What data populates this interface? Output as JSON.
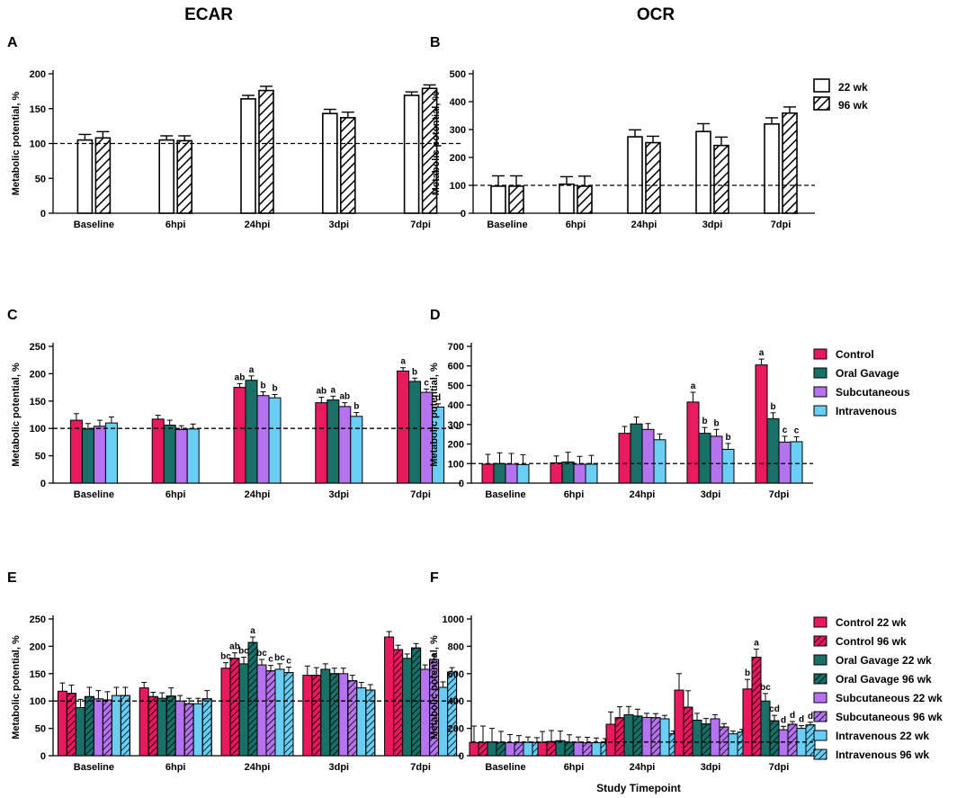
{
  "headers": {
    "left": "ECAR",
    "right": "OCR"
  },
  "x_axis_title": "Study Timepoint",
  "colors": {
    "wk22": "#ffffff",
    "wk96": "#ffffff",
    "Control": "#e8195c",
    "Oral Gavage": "#187069",
    "Subcutaneous": "#b673ef",
    "Intravenous": "#69cdf4"
  },
  "chart_data": [
    {
      "id": "A",
      "type": "bar",
      "panel_label": "A",
      "ylabel": "Metabolic potential, %",
      "ylim": [
        0,
        200
      ],
      "yticks": [
        0,
        50,
        100,
        150,
        200
      ],
      "reference_line": 100,
      "categories": [
        "Baseline",
        "6hpi",
        "24hpi",
        "3dpi",
        "7dpi"
      ],
      "series": [
        {
          "name": "22 wk",
          "color": "#ffffff",
          "hatch": false,
          "values": [
            105,
            105,
            164,
            143,
            169
          ],
          "errors": [
            8,
            6,
            5,
            6,
            5
          ]
        },
        {
          "name": "96 wk",
          "color": "#ffffff",
          "hatch": true,
          "values": [
            108,
            104,
            176,
            137,
            179
          ],
          "errors": [
            9,
            7,
            6,
            8,
            5
          ]
        }
      ],
      "legend": false,
      "annotations": []
    },
    {
      "id": "B",
      "type": "bar",
      "panel_label": "B",
      "ylabel": "Metabolic potential, %",
      "ylim": [
        0,
        500
      ],
      "yticks": [
        0,
        100,
        200,
        300,
        400,
        500
      ],
      "reference_line": 100,
      "categories": [
        "Baseline",
        "6hpi",
        "24hpi",
        "3dpi",
        "7dpi"
      ],
      "series": [
        {
          "name": "22 wk",
          "color": "#ffffff",
          "hatch": false,
          "values": [
            97,
            104,
            274,
            293,
            320
          ],
          "errors": [
            37,
            27,
            25,
            28,
            22
          ]
        },
        {
          "name": "96 wk",
          "color": "#ffffff",
          "hatch": true,
          "values": [
            97,
            97,
            253,
            243,
            359
          ],
          "errors": [
            37,
            36,
            23,
            30,
            22
          ]
        }
      ],
      "legend": true,
      "annotations": []
    },
    {
      "id": "C",
      "type": "bar",
      "panel_label": "C",
      "ylabel": "Metabolic potential, %",
      "ylim": [
        0,
        250
      ],
      "yticks": [
        0,
        50,
        100,
        150,
        200,
        250
      ],
      "reference_line": 100,
      "categories": [
        "Baseline",
        "6hpi",
        "24hpi",
        "3dpi",
        "7dpi"
      ],
      "series": [
        {
          "name": "Control",
          "color": "#e8195c",
          "hatch": false,
          "values": [
            115,
            117,
            175,
            147,
            205
          ],
          "errors": [
            12,
            7,
            7,
            10,
            6
          ]
        },
        {
          "name": "Oral Gavage",
          "color": "#187069",
          "hatch": false,
          "values": [
            99,
            106,
            188,
            152,
            186
          ],
          "errors": [
            10,
            9,
            8,
            7,
            6
          ]
        },
        {
          "name": "Subcutaneous",
          "color": "#b673ef",
          "hatch": false,
          "values": [
            104,
            98,
            160,
            140,
            166
          ],
          "errors": [
            11,
            7,
            7,
            7,
            6
          ]
        },
        {
          "name": "Intravenous",
          "color": "#69cdf4",
          "hatch": false,
          "values": [
            110,
            99,
            156,
            122,
            139
          ],
          "errors": [
            11,
            9,
            6,
            7,
            6
          ]
        }
      ],
      "legend": true,
      "annotations": [
        {
          "category": "24hpi",
          "series": "Control",
          "text": "ab"
        },
        {
          "category": "24hpi",
          "series": "Oral Gavage",
          "text": "a"
        },
        {
          "category": "24hpi",
          "series": "Subcutaneous",
          "text": "b"
        },
        {
          "category": "24hpi",
          "series": "Intravenous",
          "text": "b"
        },
        {
          "category": "3dpi",
          "series": "Control",
          "text": "ab"
        },
        {
          "category": "3dpi",
          "series": "Oral Gavage",
          "text": "a"
        },
        {
          "category": "3dpi",
          "series": "Subcutaneous",
          "text": "ab"
        },
        {
          "category": "3dpi",
          "series": "Intravenous",
          "text": "b"
        },
        {
          "category": "7dpi",
          "series": "Control",
          "text": "a"
        },
        {
          "category": "7dpi",
          "series": "Oral Gavage",
          "text": "b"
        },
        {
          "category": "7dpi",
          "series": "Subcutaneous",
          "text": "c"
        },
        {
          "category": "7dpi",
          "series": "Intravenous",
          "text": "d"
        }
      ]
    },
    {
      "id": "D",
      "type": "bar",
      "panel_label": "D",
      "ylabel": "Metabolic potential, %",
      "ylim": [
        0,
        700
      ],
      "yticks": [
        0,
        100,
        200,
        300,
        400,
        500,
        600,
        700
      ],
      "reference_line": 100,
      "categories": [
        "Baseline",
        "6hpi",
        "24hpi",
        "3dpi",
        "7dpi"
      ],
      "series": [
        {
          "name": "Control",
          "color": "#e8195c",
          "hatch": false,
          "values": [
            97,
            104,
            255,
            415,
            605
          ],
          "errors": [
            50,
            35,
            35,
            50,
            30
          ]
        },
        {
          "name": "Oral Gavage",
          "color": "#187069",
          "hatch": false,
          "values": [
            100,
            108,
            303,
            255,
            330
          ],
          "errors": [
            55,
            50,
            35,
            30,
            30
          ]
        },
        {
          "name": "Subcutaneous",
          "color": "#b673ef",
          "hatch": false,
          "values": [
            97,
            97,
            275,
            240,
            210
          ],
          "errors": [
            55,
            40,
            30,
            35,
            30
          ]
        },
        {
          "name": "Intravenous",
          "color": "#69cdf4",
          "hatch": false,
          "values": [
            95,
            97,
            222,
            173,
            212
          ],
          "errors": [
            50,
            45,
            30,
            30,
            25
          ]
        }
      ],
      "legend": false,
      "annotations": [
        {
          "category": "3dpi",
          "series": "Control",
          "text": "a"
        },
        {
          "category": "3dpi",
          "series": "Oral Gavage",
          "text": "b"
        },
        {
          "category": "3dpi",
          "series": "Subcutaneous",
          "text": "b"
        },
        {
          "category": "3dpi",
          "series": "Intravenous",
          "text": "b"
        },
        {
          "category": "7dpi",
          "series": "Control",
          "text": "a"
        },
        {
          "category": "7dpi",
          "series": "Oral Gavage",
          "text": "b"
        },
        {
          "category": "7dpi",
          "series": "Subcutaneous",
          "text": "c"
        },
        {
          "category": "7dpi",
          "series": "Intravenous",
          "text": "c"
        }
      ]
    },
    {
      "id": "E",
      "type": "bar",
      "panel_label": "E",
      "ylabel": "Metabolic potential, %",
      "ylim": [
        0,
        250
      ],
      "yticks": [
        0,
        50,
        100,
        150,
        200,
        250
      ],
      "reference_line": 100,
      "categories": [
        "Baseline",
        "6hpi",
        "24hpi",
        "3dpi",
        "7dpi"
      ],
      "series": [
        {
          "name": "Control 22 wk",
          "color": "#e8195c",
          "hatch": false,
          "values": [
            118,
            124,
            160,
            147,
            217
          ],
          "errors": [
            15,
            10,
            10,
            17,
            10
          ]
        },
        {
          "name": "Control 96 wk",
          "color": "#e8195c",
          "hatch": true,
          "values": [
            114,
            108,
            178,
            147,
            194
          ],
          "errors": [
            15,
            8,
            10,
            14,
            8
          ]
        },
        {
          "name": "Oral Gavage 22 wk",
          "color": "#187069",
          "hatch": false,
          "values": [
            88,
            105,
            168,
            158,
            178
          ],
          "errors": [
            15,
            10,
            12,
            10,
            8
          ]
        },
        {
          "name": "Oral Gavage 96 wk",
          "color": "#187069",
          "hatch": true,
          "values": [
            108,
            109,
            207,
            150,
            197
          ],
          "errors": [
            17,
            15,
            10,
            10,
            8
          ]
        },
        {
          "name": "Subcutaneous 22 wk",
          "color": "#b673ef",
          "hatch": false,
          "values": [
            104,
            100,
            166,
            150,
            158
          ],
          "errors": [
            15,
            10,
            10,
            10,
            8
          ]
        },
        {
          "name": "Subcutaneous 96 wk",
          "color": "#b673ef",
          "hatch": true,
          "values": [
            102,
            95,
            155,
            137,
            176
          ],
          "errors": [
            15,
            10,
            10,
            10,
            8
          ]
        },
        {
          "name": "Intravenous 22 wk",
          "color": "#69cdf4",
          "hatch": false,
          "values": [
            110,
            95,
            158,
            124,
            125
          ],
          "errors": [
            15,
            10,
            10,
            10,
            10
          ]
        },
        {
          "name": "Intravenous 96 wk",
          "color": "#69cdf4",
          "hatch": true,
          "values": [
            110,
            104,
            152,
            120,
            153
          ],
          "errors": [
            15,
            15,
            10,
            10,
            8
          ]
        }
      ],
      "legend": false,
      "annotations": [
        {
          "category": "24hpi",
          "series": "Control 22 wk",
          "text": "bc"
        },
        {
          "category": "24hpi",
          "series": "Control 96 wk",
          "text": "ab"
        },
        {
          "category": "24hpi",
          "series": "Oral Gavage 22 wk",
          "text": "bc"
        },
        {
          "category": "24hpi",
          "series": "Oral Gavage 96 wk",
          "text": "a"
        },
        {
          "category": "24hpi",
          "series": "Subcutaneous 22 wk",
          "text": "bc"
        },
        {
          "category": "24hpi",
          "series": "Subcutaneous 96 wk",
          "text": "c"
        },
        {
          "category": "24hpi",
          "series": "Intravenous 22 wk",
          "text": "bc"
        },
        {
          "category": "24hpi",
          "series": "Intravenous 96 wk",
          "text": "c"
        }
      ]
    },
    {
      "id": "F",
      "type": "bar",
      "panel_label": "F",
      "ylabel": "Metabolic potential, %",
      "ylim": [
        0,
        1000
      ],
      "yticks": [
        0,
        200,
        400,
        600,
        800,
        1000
      ],
      "reference_line": 100,
      "categories": [
        "Baseline",
        "6hpi",
        "24hpi",
        "3dpi",
        "7dpi"
      ],
      "series": [
        {
          "name": "Control 22 wk",
          "color": "#e8195c",
          "hatch": false,
          "values": [
            97,
            97,
            230,
            480,
            488
          ],
          "errors": [
            120,
            80,
            90,
            120,
            70
          ]
        },
        {
          "name": "Control 96 wk",
          "color": "#e8195c",
          "hatch": true,
          "values": [
            97,
            104,
            278,
            355,
            720
          ],
          "errors": [
            120,
            80,
            80,
            120,
            60
          ]
        },
        {
          "name": "Oral Gavage 22 wk",
          "color": "#187069",
          "hatch": false,
          "values": [
            100,
            110,
            300,
            260,
            400
          ],
          "errors": [
            100,
            70,
            60,
            50,
            55
          ]
        },
        {
          "name": "Oral Gavage 96 wk",
          "color": "#187069",
          "hatch": true,
          "values": [
            98,
            98,
            290,
            232,
            255
          ],
          "errors": [
            80,
            55,
            50,
            40,
            40
          ]
        },
        {
          "name": "Subcutaneous 22 wk",
          "color": "#b673ef",
          "hatch": false,
          "values": [
            95,
            97,
            280,
            270,
            190
          ],
          "errors": [
            60,
            40,
            30,
            30,
            25
          ]
        },
        {
          "name": "Subcutaneous 96 wk",
          "color": "#b673ef",
          "hatch": true,
          "values": [
            97,
            95,
            278,
            210,
            230
          ],
          "errors": [
            50,
            40,
            30,
            25,
            20
          ]
        },
        {
          "name": "Intravenous 22 wk",
          "color": "#69cdf4",
          "hatch": false,
          "values": [
            97,
            95,
            270,
            160,
            200
          ],
          "errors": [
            40,
            35,
            25,
            20,
            20
          ]
        },
        {
          "name": "Intravenous 96 wk",
          "color": "#69cdf4",
          "hatch": true,
          "values": [
            97,
            95,
            160,
            172,
            225
          ],
          "errors": [
            35,
            30,
            20,
            20,
            20
          ]
        }
      ],
      "legend": true,
      "annotations": [
        {
          "category": "7dpi",
          "series": "Control 22 wk",
          "text": "b"
        },
        {
          "category": "7dpi",
          "series": "Control 96 wk",
          "text": "a"
        },
        {
          "category": "7dpi",
          "series": "Oral Gavage 22 wk",
          "text": "bc"
        },
        {
          "category": "7dpi",
          "series": "Oral Gavage 96 wk",
          "text": "cd"
        },
        {
          "category": "7dpi",
          "series": "Subcutaneous 22 wk",
          "text": "d"
        },
        {
          "category": "7dpi",
          "series": "Subcutaneous 96 wk",
          "text": "d"
        },
        {
          "category": "7dpi",
          "series": "Intravenous 22 wk",
          "text": "d"
        },
        {
          "category": "7dpi",
          "series": "Intravenous 96 wk",
          "text": "d"
        }
      ]
    }
  ]
}
